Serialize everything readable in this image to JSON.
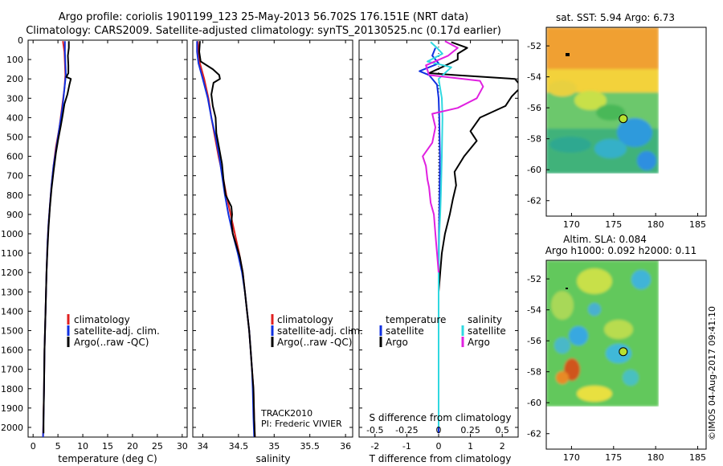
{
  "header": {
    "line1": "Argo profile: coriolis 1901199_123 25-May-2013 56.702S 176.151E (NRT data)",
    "line2": "Climatology: CARS2009. Satellite-adjusted climatology: synTS_20130525.nc (0.17d earlier)"
  },
  "colors": {
    "climatology": "#e02020",
    "satellite": "#1030e0",
    "argo": "#000000",
    "sal_sat": "#30d8e0",
    "sal_argo": "#e020e0"
  },
  "chart_data": [
    {
      "type": "line",
      "id": "temperature",
      "xlabel": "temperature (deg C)",
      "ylim": [
        2050,
        0
      ],
      "xlim": [
        -1,
        31
      ],
      "xticks": [
        0,
        5,
        10,
        15,
        20,
        25,
        30
      ],
      "yticks": [
        0,
        100,
        200,
        300,
        400,
        500,
        600,
        700,
        800,
        900,
        1000,
        1100,
        1200,
        1300,
        1400,
        1500,
        1600,
        1700,
        1800,
        1900,
        2000
      ],
      "legend": [
        "climatology",
        "satellite-adj. clim.",
        "Argo(..raw -QC)"
      ],
      "series": [
        {
          "name": "climatology",
          "color_key": "climatology",
          "points": [
            [
              6.0,
              5
            ],
            [
              6.3,
              60
            ],
            [
              6.4,
              120
            ],
            [
              6.5,
              180
            ],
            [
              6.3,
              250
            ],
            [
              5.8,
              350
            ],
            [
              5.3,
              450
            ],
            [
              4.6,
              550
            ],
            [
              4.1,
              650
            ],
            [
              3.7,
              750
            ],
            [
              3.4,
              850
            ],
            [
              3.1,
              950
            ],
            [
              2.9,
              1050
            ],
            [
              2.7,
              1200
            ],
            [
              2.5,
              1400
            ],
            [
              2.3,
              1600
            ],
            [
              2.2,
              1800
            ],
            [
              2.0,
              2050
            ]
          ]
        },
        {
          "name": "satellite-adj. clim.",
          "color_key": "satellite",
          "points": [
            [
              6.4,
              5
            ],
            [
              6.4,
              60
            ],
            [
              6.5,
              120
            ],
            [
              6.6,
              180
            ],
            [
              6.3,
              250
            ],
            [
              5.9,
              350
            ],
            [
              5.3,
              450
            ],
            [
              4.7,
              550
            ],
            [
              4.1,
              650
            ],
            [
              3.7,
              750
            ],
            [
              3.4,
              850
            ],
            [
              3.1,
              950
            ],
            [
              2.9,
              1050
            ],
            [
              2.7,
              1200
            ],
            [
              2.5,
              1400
            ],
            [
              2.3,
              1600
            ],
            [
              2.2,
              1800
            ],
            [
              2.1,
              1950
            ],
            [
              2.0,
              2050
            ]
          ]
        },
        {
          "name": "Argo(..raw -QC)",
          "color_key": "argo",
          "points": [
            [
              7.2,
              5
            ],
            [
              7.2,
              40
            ],
            [
              7.0,
              80
            ],
            [
              7.1,
              130
            ],
            [
              7.1,
              170
            ],
            [
              6.7,
              190
            ],
            [
              7.6,
              200
            ],
            [
              7.3,
              230
            ],
            [
              6.9,
              280
            ],
            [
              6.3,
              330
            ],
            [
              6.0,
              380
            ],
            [
              5.6,
              440
            ],
            [
              5.0,
              520
            ],
            [
              4.6,
              580
            ],
            [
              4.1,
              680
            ],
            [
              3.7,
              770
            ],
            [
              3.4,
              860
            ],
            [
              3.1,
              970
            ],
            [
              2.9,
              1080
            ],
            [
              2.7,
              1200
            ],
            [
              2.5,
              1400
            ],
            [
              2.3,
              1600
            ],
            [
              2.2,
              1800
            ],
            [
              2.1,
              1950
            ],
            [
              2.1,
              2030
            ]
          ]
        }
      ]
    },
    {
      "type": "line",
      "id": "salinity",
      "xlabel": "salinity",
      "ylim": [
        2050,
        0
      ],
      "xlim": [
        33.86,
        36.1
      ],
      "xticks": [
        34,
        34.5,
        35,
        35.5,
        36
      ],
      "legend": [
        "climatology",
        "satellite-adj. clim.",
        "Argo(..raw -QC)"
      ],
      "notes": [
        "TRACK2010",
        "PI: Frederic VIVIER"
      ],
      "series": [
        {
          "name": "climatology",
          "color_key": "climatology",
          "points": [
            [
              33.93,
              5
            ],
            [
              33.94,
              60
            ],
            [
              33.96,
              120
            ],
            [
              34.02,
              200
            ],
            [
              34.08,
              300
            ],
            [
              34.12,
              400
            ],
            [
              34.17,
              500
            ],
            [
              34.22,
              600
            ],
            [
              34.28,
              700
            ],
            [
              34.33,
              800
            ],
            [
              34.39,
              900
            ],
            [
              34.45,
              1000
            ],
            [
              34.51,
              1100
            ],
            [
              34.56,
              1200
            ],
            [
              34.59,
              1300
            ],
            [
              34.62,
              1400
            ],
            [
              34.65,
              1500
            ],
            [
              34.67,
              1600
            ],
            [
              34.69,
              1700
            ],
            [
              34.71,
              1800
            ],
            [
              34.72,
              1950
            ],
            [
              34.73,
              2050
            ]
          ]
        },
        {
          "name": "satellite-adj. clim.",
          "color_key": "satellite",
          "points": [
            [
              33.92,
              5
            ],
            [
              33.92,
              60
            ],
            [
              33.94,
              120
            ],
            [
              34.0,
              200
            ],
            [
              34.07,
              300
            ],
            [
              34.12,
              400
            ],
            [
              34.18,
              500
            ],
            [
              34.23,
              600
            ],
            [
              34.27,
              700
            ],
            [
              34.31,
              800
            ],
            [
              34.36,
              900
            ],
            [
              34.42,
              1000
            ],
            [
              34.49,
              1100
            ],
            [
              34.55,
              1200
            ],
            [
              34.59,
              1300
            ],
            [
              34.62,
              1400
            ],
            [
              34.65,
              1500
            ],
            [
              34.67,
              1600
            ],
            [
              34.69,
              1700
            ],
            [
              34.7,
              1800
            ],
            [
              34.71,
              1950
            ],
            [
              34.72,
              2050
            ]
          ]
        },
        {
          "name": "Argo(..raw -QC)",
          "color_key": "argo",
          "points": [
            [
              33.96,
              5
            ],
            [
              33.95,
              60
            ],
            [
              33.97,
              110
            ],
            [
              34.14,
              150
            ],
            [
              34.23,
              180
            ],
            [
              34.24,
              200
            ],
            [
              34.15,
              220
            ],
            [
              34.12,
              280
            ],
            [
              34.14,
              340
            ],
            [
              34.18,
              400
            ],
            [
              34.19,
              480
            ],
            [
              34.23,
              560
            ],
            [
              34.27,
              640
            ],
            [
              34.29,
              720
            ],
            [
              34.32,
              800
            ],
            [
              34.4,
              860
            ],
            [
              34.41,
              900
            ],
            [
              34.4,
              940
            ],
            [
              34.42,
              1000
            ],
            [
              34.47,
              1060
            ],
            [
              34.52,
              1120
            ],
            [
              34.56,
              1200
            ],
            [
              34.59,
              1300
            ],
            [
              34.62,
              1400
            ],
            [
              34.65,
              1500
            ],
            [
              34.67,
              1600
            ],
            [
              34.69,
              1700
            ],
            [
              34.71,
              1800
            ],
            [
              34.72,
              1950
            ],
            [
              34.73,
              2050
            ]
          ]
        }
      ]
    },
    {
      "type": "line",
      "id": "difference",
      "xlabel": "T difference from climatology",
      "xlabel_top": "S difference from climatology",
      "ylim": [
        2050,
        0
      ],
      "xlim": [
        -2.5,
        2.5
      ],
      "xticks": [
        -2,
        -1,
        0,
        1,
        2
      ],
      "xticklabels_s": [
        "-0.5",
        "-0.25",
        "0",
        "0.25",
        "0.5"
      ],
      "legend_temperature": [
        "temperature",
        "satellite",
        "Argo"
      ],
      "legend_salinity": [
        "salinity",
        "satellite",
        "Argo"
      ],
      "series": [
        {
          "name": "temperature satellite",
          "color_key": "satellite",
          "points": [
            [
              -0.1,
              40
            ],
            [
              -0.2,
              80
            ],
            [
              0.0,
              120
            ],
            [
              -0.6,
              160
            ],
            [
              -0.3,
              180
            ],
            [
              -0.05,
              230
            ],
            [
              0.0,
              300
            ],
            [
              0.02,
              400
            ],
            [
              0.04,
              600
            ],
            [
              0.03,
              800
            ],
            [
              0.01,
              1000
            ],
            [
              0.0,
              1200
            ],
            [
              0.0,
              1500
            ],
            [
              0.0,
              1800
            ],
            [
              0.0,
              2030
            ]
          ]
        },
        {
          "name": "temperature Argo",
          "color_key": "argo",
          "points": [
            [
              0.4,
              10
            ],
            [
              0.9,
              40
            ],
            [
              0.6,
              70
            ],
            [
              0.6,
              100
            ],
            [
              0.1,
              140
            ],
            [
              -0.3,
              170
            ],
            [
              0.5,
              180
            ],
            [
              2.4,
              200
            ],
            [
              2.6,
              240
            ],
            [
              2.3,
              290
            ],
            [
              2.1,
              340
            ],
            [
              1.3,
              400
            ],
            [
              1.0,
              470
            ],
            [
              1.2,
              520
            ],
            [
              0.8,
              600
            ],
            [
              0.5,
              680
            ],
            [
              0.55,
              750
            ],
            [
              0.45,
              820
            ],
            [
              0.35,
              900
            ],
            [
              0.2,
              1000
            ],
            [
              0.1,
              1100
            ],
            [
              0.05,
              1200
            ],
            [
              0.0,
              1300
            ]
          ]
        },
        {
          "name": "salinity satellite",
          "color_key": "sal_sat",
          "points": [
            [
              -0.25,
              10
            ],
            [
              -0.05,
              40
            ],
            [
              0.12,
              70
            ],
            [
              -0.35,
              110
            ],
            [
              0.4,
              140
            ],
            [
              0.0,
              200
            ],
            [
              0.1,
              300
            ],
            [
              0.12,
              400
            ],
            [
              0.1,
              600
            ],
            [
              0.07,
              800
            ],
            [
              0.05,
              900
            ],
            [
              0.02,
              1000
            ],
            [
              0.0,
              1200
            ],
            [
              0.0,
              1600
            ],
            [
              0.0,
              2000
            ]
          ]
        },
        {
          "name": "salinity Argo",
          "color_key": "sal_argo",
          "points": [
            [
              0.2,
              5
            ],
            [
              0.6,
              40
            ],
            [
              0.3,
              80
            ],
            [
              -0.4,
              130
            ],
            [
              -0.3,
              180
            ],
            [
              1.3,
              210
            ],
            [
              1.4,
              240
            ],
            [
              1.2,
              300
            ],
            [
              0.6,
              350
            ],
            [
              -0.2,
              380
            ],
            [
              -0.1,
              450
            ],
            [
              -0.2,
              530
            ],
            [
              -0.5,
              600
            ],
            [
              -0.4,
              650
            ],
            [
              -0.35,
              720
            ],
            [
              -0.3,
              760
            ],
            [
              -0.25,
              840
            ],
            [
              -0.15,
              900
            ],
            [
              -0.1,
              1000
            ],
            [
              -0.05,
              1100
            ],
            [
              0.0,
              1200
            ]
          ]
        }
      ]
    },
    {
      "type": "heatmap",
      "id": "sst-map",
      "title": "sat. SST: 5.94 Argo: 6.73",
      "xlim": [
        167,
        186
      ],
      "ylim": [
        -63,
        -50.8
      ],
      "xticks": [
        170,
        175,
        180,
        185
      ],
      "yticks": [
        -52,
        -54,
        -56,
        -58,
        -60,
        -62
      ],
      "data_extent_lon": [
        167,
        180
      ],
      "data_extent_lat": [
        -60,
        -50.8
      ],
      "marker": {
        "lon": 176.151,
        "lat": -56.702
      }
    },
    {
      "type": "heatmap",
      "id": "sla-map",
      "title_line1": "Altim. SLA: 0.084",
      "title_line2": "Argo h1000: 0.092 h2000: 0.11",
      "xlim": [
        167,
        186
      ],
      "ylim": [
        -63,
        -50.8
      ],
      "xticks": [
        170,
        175,
        180,
        185
      ],
      "yticks": [
        -52,
        -54,
        -56,
        -58,
        -60,
        -62
      ],
      "data_extent_lon": [
        167,
        180
      ],
      "data_extent_lat": [
        -60,
        -50.8
      ],
      "marker": {
        "lon": 176.151,
        "lat": -56.702
      }
    }
  ],
  "depth_tick_labels": [
    "0",
    "100",
    "200",
    "300",
    "400",
    "500",
    "600",
    "700",
    "800",
    "900",
    "1000",
    "1100",
    "1200",
    "1300",
    "1400",
    "1500",
    "1600",
    "1700",
    "1800",
    "1900",
    "2000"
  ],
  "watermark": "©IMOS 04-Aug-2017 09:41:10"
}
